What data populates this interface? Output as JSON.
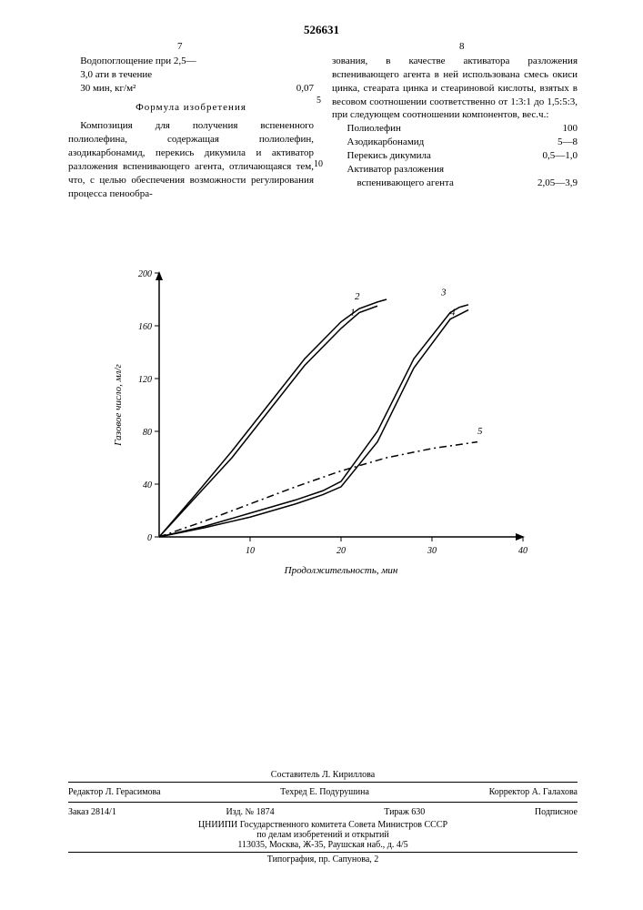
{
  "patent_number": "526631",
  "col_left_num": "7",
  "col_right_num": "8",
  "line_markers": {
    "l5": "5",
    "l10": "10"
  },
  "left_col": {
    "water_absorption": "Водопоглощение при 2,5—",
    "water_absorption2": "3,0 ати в течение",
    "water_absorption3": "30 мин, кг/м²",
    "water_value": "0,07",
    "formula_title": "Формула изобретения",
    "claim_text": "Композиция для получения вспененного полиолефина, содержащая полиолефин, азодикарбонамид, перекись дикумила и активатор разложения вспенивающего агента, отличающаяся тем, что, с целью обеспечения возможности регулирования процесса пенообра-"
  },
  "right_col": {
    "continuation": "зования, в качестве активатора разложения вспенивающего агента в ней использована смесь окиси цинка, стеарата цинка и стеариновой кислоты, взятых в весовом соотношении соответственно от 1:3:1 до 1,5:5:3, при следующем соотношении компонентов, вес.ч.:",
    "comp1_name": "Полиолефин",
    "comp1_val": "100",
    "comp2_name": "Азодикарбонамид",
    "comp2_val": "5—8",
    "comp3_name": "Перекись дикумила",
    "comp3_val": "0,5—1,0",
    "comp4_name": "Активатор разложения",
    "comp4_name2": "вспенивающего агента",
    "comp4_val": "2,05—3,9"
  },
  "chart": {
    "type": "line",
    "xlabel": "Продолжительность, мин",
    "ylabel": "Газовое число, мл/г",
    "xlim": [
      0,
      40
    ],
    "ylim": [
      0,
      200
    ],
    "xtick_step": 10,
    "ytick_step": 40,
    "label_fontsize": 11,
    "tick_fontsize": 10,
    "background_color": "#ffffff",
    "axis_color": "#000000",
    "line_width": 1.5,
    "series": [
      {
        "label": "1",
        "x": [
          0,
          4,
          8,
          12,
          16,
          20,
          22,
          24
        ],
        "y": [
          0,
          30,
          60,
          95,
          130,
          158,
          170,
          175
        ],
        "label_pos": [
          21,
          168
        ]
      },
      {
        "label": "2",
        "x": [
          0,
          4,
          8,
          12,
          16,
          20,
          22,
          24,
          25
        ],
        "y": [
          0,
          32,
          65,
          100,
          135,
          163,
          173,
          178,
          180
        ],
        "label_pos": [
          21.5,
          180
        ]
      },
      {
        "label": "3",
        "x": [
          0,
          5,
          10,
          15,
          18,
          20,
          24,
          28,
          32,
          33,
          34
        ],
        "y": [
          0,
          8,
          18,
          28,
          35,
          42,
          80,
          135,
          170,
          174,
          176
        ],
        "label_pos": [
          31,
          183
        ]
      },
      {
        "label": "4",
        "x": [
          0,
          5,
          10,
          15,
          18,
          20,
          24,
          28,
          32,
          34
        ],
        "y": [
          0,
          7,
          15,
          25,
          32,
          38,
          72,
          128,
          165,
          172
        ],
        "label_pos": [
          32,
          168
        ]
      },
      {
        "label": "5",
        "x": [
          0,
          5,
          10,
          15,
          20,
          25,
          30,
          35
        ],
        "y": [
          0,
          12,
          25,
          38,
          50,
          60,
          67,
          72
        ],
        "label_pos": [
          35,
          78
        ],
        "dash": "8,4,2,4"
      }
    ]
  },
  "footer": {
    "compiler": "Составитель Л. Кириллова",
    "editor": "Редактор Л. Герасимова",
    "techred": "Техред Е. Подурушина",
    "corrector": "Корректор А. Галахова",
    "order": "Заказ 2814/1",
    "izd": "Изд. № 1874",
    "tirazh": "Тираж 630",
    "podpisnoe": "Подписное",
    "org": "ЦНИИПИ Государственного комитета Совета Министров СССР",
    "org2": "по делам изобретений и открытий",
    "address": "113035, Москва, Ж-35, Раушская наб., д. 4/5",
    "typography": "Типография, пр. Сапунова, 2"
  }
}
